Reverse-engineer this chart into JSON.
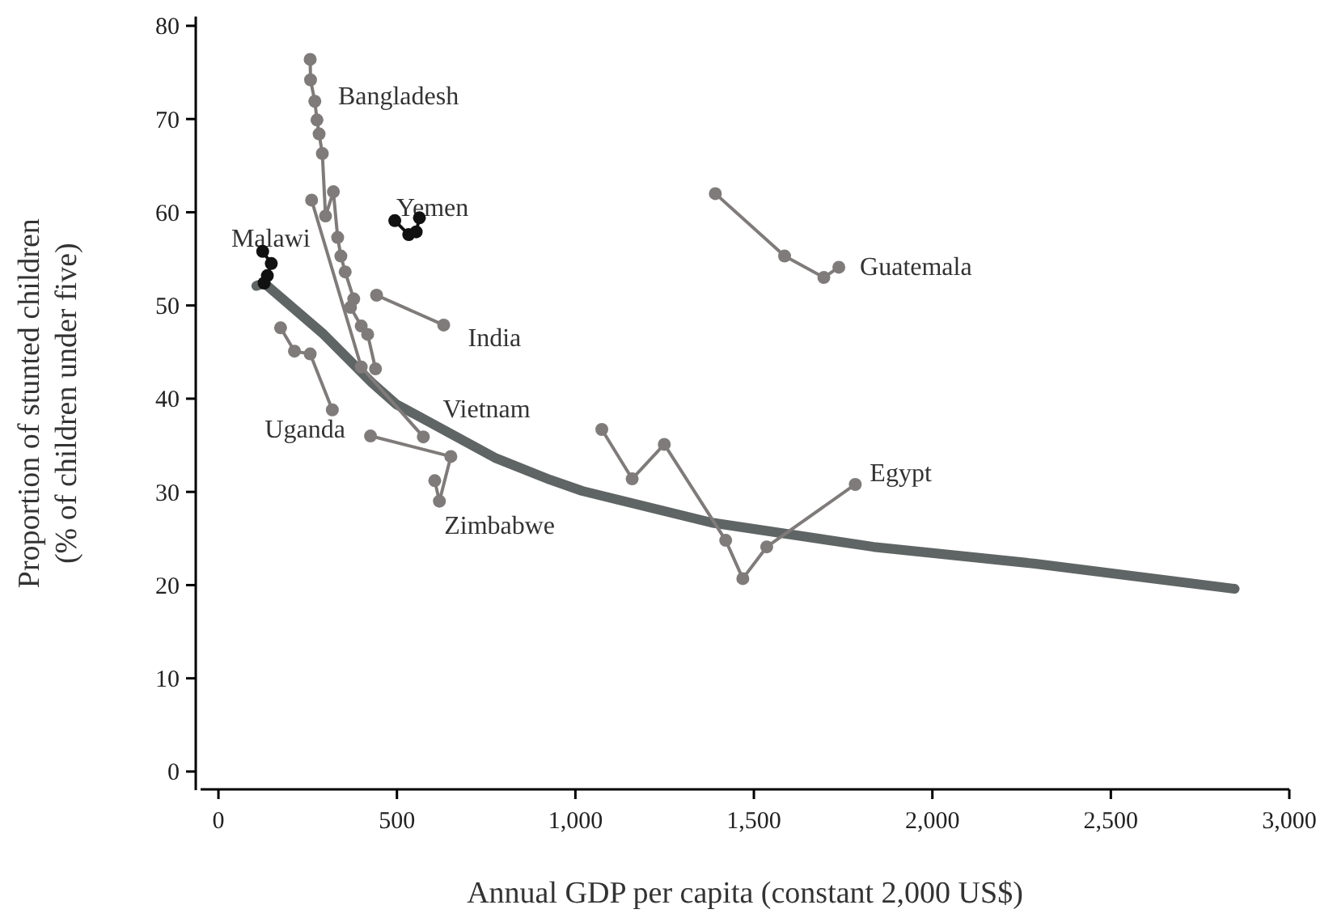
{
  "chart_data": {
    "type": "line",
    "xlabel": "Annual GDP per capita (constant 2,000 US$)",
    "ylabel": "Proportion of stunted children\n(% of children under five)",
    "xlim": [
      -50,
      3000
    ],
    "ylim": [
      -2,
      81
    ],
    "xticks": [
      0,
      500,
      {
        "value": 1000,
        "label": "1,000"
      },
      {
        "value": 1500,
        "label": "1,500"
      },
      {
        "value": 2000,
        "label": "2,000"
      },
      {
        "value": 2500,
        "label": "2,500"
      },
      {
        "value": 3000,
        "label": "3,000"
      }
    ],
    "yticks": [
      0,
      10,
      20,
      30,
      40,
      50,
      60,
      70,
      80
    ],
    "grid": false,
    "marker": "circle",
    "series": [
      {
        "color": "#5f6564",
        "marker": "none",
        "x": [
          106,
          128,
          295,
          430,
          498,
          581,
          778,
          929,
          1019,
          1382,
          1835,
          2288,
          2847
        ],
        "values": [
          52.1,
          52.4,
          46.9,
          41.7,
          39.4,
          37.7,
          33.6,
          31.3,
          30.1,
          26.7,
          24.1,
          22.3,
          19.6
        ]
      },
      {
        "name": "Bangladesh",
        "color": "#7f7b7a",
        "x": [
          257,
          258,
          270,
          276,
          282,
          291,
          300,
          322,
          334,
          343,
          355,
          379,
          370,
          400,
          418,
          440
        ],
        "values": [
          76.4,
          74.2,
          71.9,
          69.9,
          68.4,
          66.3,
          59.6,
          62.2,
          57.3,
          55.3,
          53.6,
          50.7,
          49.8,
          47.8,
          46.9,
          43.2
        ]
      },
      {
        "name": "Yemen",
        "color": "#111111",
        "x": [
          494,
          533,
          554,
          563
        ],
        "values": [
          59.1,
          57.6,
          57.9,
          59.4
        ]
      },
      {
        "name": "Malawi",
        "color": "#111111",
        "x": [
          124,
          148,
          137,
          128
        ],
        "values": [
          55.8,
          54.5,
          53.2,
          52.4
        ]
      },
      {
        "name": "India",
        "color": "#7f7b7a",
        "x": [
          443,
          631
        ],
        "values": [
          51.1,
          47.9
        ]
      },
      {
        "name": "Uganda",
        "color": "#7f7b7a",
        "x": [
          174,
          213,
          257,
          319
        ],
        "values": [
          47.6,
          45.1,
          44.8,
          38.8
        ]
      },
      {
        "name": "Vietnam",
        "color": "#7f7b7a",
        "x": [
          261,
          400,
          574
        ],
        "values": [
          61.3,
          43.4,
          35.9
        ]
      },
      {
        "name": "Zimbabwe",
        "color": "#7f7b7a",
        "x": [
          426,
          651,
          619,
          606
        ],
        "values": [
          36.0,
          33.8,
          29.0,
          31.2
        ]
      },
      {
        "name": "Guatemala",
        "color": "#7f7b7a",
        "x": [
          1392,
          1586,
          1696,
          1738
        ],
        "values": [
          62.0,
          55.3,
          53.0,
          54.1
        ]
      },
      {
        "name": "Egypt",
        "color": "#7f7b7a",
        "x": [
          1074,
          1159,
          1249,
          1421,
          1469,
          1536,
          1784
        ],
        "values": [
          36.7,
          31.4,
          35.1,
          24.8,
          20.7,
          24.1,
          30.8
        ]
      }
    ]
  }
}
